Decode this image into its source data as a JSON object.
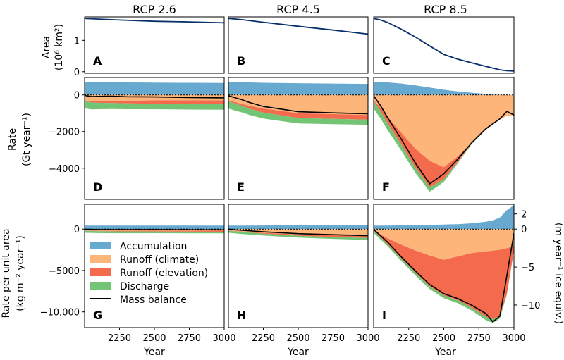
{
  "columns": [
    "RCP 2.6",
    "RCP 4.5",
    "RCP 8.5"
  ],
  "x_axis": {
    "label": "Year",
    "ticks": [
      "2250",
      "2500",
      "2750",
      "3000"
    ],
    "range": [
      2000,
      3000
    ]
  },
  "rows": {
    "area": {
      "ylabel_line1": "Area",
      "ylabel_line2": "(10⁶ km²)",
      "ticks": [
        "0",
        "1"
      ]
    },
    "rate": {
      "ylabel_line1": "Rate",
      "ylabel_line2": "(Gt year⁻¹)",
      "ticks": [
        "0",
        "−2000",
        "−4000"
      ]
    },
    "unit": {
      "ylabel_line1": "Rate per unit area",
      "ylabel_line2": "(kg m⁻² year⁻¹)",
      "ticks": [
        "0",
        "−5000",
        "−10,000"
      ],
      "right_label": "(m year⁻¹ ice equiv.)",
      "right_ticks": [
        "2",
        "0",
        "−5",
        "−10"
      ]
    }
  },
  "panel_labels": [
    "A",
    "B",
    "C",
    "D",
    "E",
    "F",
    "G",
    "H",
    "I"
  ],
  "legend": {
    "accumulation": "Accumulation",
    "runoff_climate": "Runoff (climate)",
    "runoff_elevation": "Runoff (elevation)",
    "discharge": "Discharge",
    "mass_balance": "Mass balance"
  },
  "colors": {
    "accumulation": "#67a9cf",
    "runoff_climate": "#fdb57a",
    "runoff_elevation": "#f46a4c",
    "discharge": "#74c476",
    "mass_balance": "#000000",
    "area_line": "#08306b"
  },
  "chart_data": [
    {
      "type": "line",
      "row": "area",
      "scenario": "RCP 2.6",
      "ylabel": "Area (10^6 km^2)",
      "ylim": [
        -0.05,
        1.75
      ],
      "x": [
        2000,
        2100,
        2250,
        2500,
        2750,
        3000
      ],
      "values": [
        1.7,
        1.68,
        1.65,
        1.61,
        1.59,
        1.56
      ]
    },
    {
      "type": "line",
      "row": "area",
      "scenario": "RCP 4.5",
      "ylabel": "Area (10^6 km^2)",
      "ylim": [
        -0.05,
        1.75
      ],
      "x": [
        2000,
        2100,
        2250,
        2500,
        2750,
        3000
      ],
      "values": [
        1.7,
        1.66,
        1.58,
        1.45,
        1.33,
        1.2
      ]
    },
    {
      "type": "line",
      "row": "area",
      "scenario": "RCP 8.5",
      "ylabel": "Area (10^6 km^2)",
      "ylim": [
        -0.05,
        1.75
      ],
      "x": [
        2000,
        2050,
        2100,
        2200,
        2300,
        2400,
        2500,
        2600,
        2700,
        2800,
        2900,
        2950,
        3000
      ],
      "values": [
        1.7,
        1.65,
        1.57,
        1.35,
        1.1,
        0.82,
        0.55,
        0.4,
        0.28,
        0.17,
        0.06,
        0.03,
        0.02
      ]
    },
    {
      "type": "area",
      "row": "rate",
      "scenario": "RCP 2.6",
      "ylabel": "Rate (Gt year^-1)",
      "ylim": [
        -5700,
        950
      ],
      "x": [
        2000,
        2050,
        2100,
        2200,
        2300,
        2500,
        2750,
        3000
      ],
      "series": [
        {
          "name": "Accumulation",
          "values": [
            700,
            700,
            700,
            690,
            680,
            670,
            660,
            650
          ]
        },
        {
          "name": "Runoff (climate)",
          "values": [
            -300,
            -350,
            -350,
            -330,
            -320,
            -300,
            -300,
            -300
          ]
        },
        {
          "name": "Runoff (elevation)",
          "values": [
            -30,
            -60,
            -80,
            -110,
            -140,
            -180,
            -200,
            -210
          ]
        },
        {
          "name": "Discharge",
          "values": [
            -400,
            -380,
            -350,
            -330,
            -320,
            -300,
            -300,
            -300
          ]
        },
        {
          "name": "Mass balance",
          "values": [
            -30,
            -90,
            -80,
            -70,
            -100,
            -110,
            -140,
            -160
          ]
        }
      ]
    },
    {
      "type": "area",
      "row": "rate",
      "scenario": "RCP 4.5",
      "ylabel": "Rate (Gt year^-1)",
      "ylim": [
        -5700,
        950
      ],
      "x": [
        2000,
        2050,
        2100,
        2150,
        2250,
        2500,
        2750,
        3000
      ],
      "series": [
        {
          "name": "Accumulation",
          "values": [
            700,
            700,
            690,
            680,
            660,
            640,
            620,
            600
          ]
        },
        {
          "name": "Runoff (climate)",
          "values": [
            -300,
            -400,
            -500,
            -600,
            -750,
            -1000,
            -1050,
            -1100
          ]
        },
        {
          "name": "Runoff (elevation)",
          "values": [
            -40,
            -80,
            -100,
            -150,
            -220,
            -260,
            -260,
            -250
          ]
        },
        {
          "name": "Discharge",
          "values": [
            -400,
            -380,
            -360,
            -340,
            -320,
            -300,
            -290,
            -280
          ]
        },
        {
          "name": "Mass balance",
          "values": [
            -40,
            -160,
            -270,
            -410,
            -630,
            -920,
            -980,
            -1030
          ]
        }
      ]
    },
    {
      "type": "area",
      "row": "rate",
      "scenario": "RCP 8.5",
      "ylabel": "Rate (Gt year^-1)",
      "ylim": [
        -5700,
        950
      ],
      "x": [
        2000,
        2050,
        2100,
        2200,
        2300,
        2400,
        2500,
        2600,
        2700,
        2800,
        2900,
        2950,
        3000
      ],
      "series": [
        {
          "name": "Accumulation",
          "values": [
            700,
            700,
            680,
            620,
            520,
            400,
            280,
            190,
            120,
            60,
            20,
            10,
            0
          ]
        },
        {
          "name": "Runoff (climate)",
          "values": [
            -300,
            -700,
            -1200,
            -2100,
            -2950,
            -3600,
            -3950,
            -3350,
            -2600,
            -1900,
            -1350,
            -1150,
            -1100
          ]
        },
        {
          "name": "Runoff (elevation)",
          "values": [
            -50,
            -200,
            -350,
            -650,
            -1050,
            -1450,
            -650,
            -300,
            -50,
            0,
            0,
            0,
            0
          ]
        },
        {
          "name": "Discharge",
          "values": [
            -400,
            -400,
            -380,
            -330,
            -280,
            -230,
            -150,
            -80,
            -30,
            0,
            0,
            0,
            0
          ]
        },
        {
          "name": "Mass balance",
          "values": [
            -50,
            -600,
            -1250,
            -2450,
            -3750,
            -4850,
            -4300,
            -3500,
            -2600,
            -1850,
            -1300,
            -900,
            -1100
          ]
        }
      ]
    },
    {
      "type": "area",
      "row": "unit",
      "scenario": "RCP 2.6",
      "ylabel": "Rate per unit area (kg m^-2 year^-1)",
      "ylim": [
        -11900,
        3000
      ],
      "x": [
        2000,
        2100,
        2250,
        2500,
        2750,
        3000
      ],
      "series": [
        {
          "name": "Accumulation",
          "values": [
            420,
            420,
            430,
            430,
            430,
            430
          ]
        },
        {
          "name": "Runoff (climate)",
          "values": [
            -180,
            -200,
            -200,
            -190,
            -190,
            -190
          ]
        },
        {
          "name": "Runoff (elevation)",
          "values": [
            -20,
            -50,
            -80,
            -100,
            -120,
            -130
          ]
        },
        {
          "name": "Discharge",
          "values": [
            -250,
            -230,
            -220,
            -200,
            -200,
            -200
          ]
        },
        {
          "name": "Mass balance",
          "values": [
            -30,
            -60,
            -70,
            -60,
            -80,
            -90
          ]
        }
      ]
    },
    {
      "type": "area",
      "row": "unit",
      "scenario": "RCP 4.5",
      "ylabel": "Rate per unit area (kg m^-2 year^-1)",
      "ylim": [
        -11900,
        3000
      ],
      "x": [
        2000,
        2100,
        2250,
        2500,
        2750,
        3000
      ],
      "series": [
        {
          "name": "Accumulation",
          "values": [
            420,
            430,
            440,
            460,
            480,
            500
          ]
        },
        {
          "name": "Runoff (climate)",
          "values": [
            -180,
            -300,
            -450,
            -650,
            -750,
            -850
          ]
        },
        {
          "name": "Runoff (elevation)",
          "values": [
            -20,
            -50,
            -100,
            -160,
            -200,
            -220
          ]
        },
        {
          "name": "Discharge",
          "values": [
            -250,
            -240,
            -230,
            -220,
            -230,
            -240
          ]
        },
        {
          "name": "Mass balance",
          "values": [
            -30,
            -150,
            -330,
            -550,
            -680,
            -800
          ]
        }
      ]
    },
    {
      "type": "area",
      "row": "unit",
      "scenario": "RCP 8.5",
      "ylabel": "Rate per unit area (kg m^-2 year^-1)",
      "ylim": [
        -11900,
        3000
      ],
      "x": [
        2000,
        2100,
        2200,
        2300,
        2400,
        2500,
        2600,
        2700,
        2800,
        2850,
        2900,
        2950,
        3000
      ],
      "series": [
        {
          "name": "Accumulation",
          "values": [
            420,
            430,
            450,
            480,
            520,
            560,
            600,
            700,
            900,
            1050,
            1400,
            2300,
            2900
          ]
        },
        {
          "name": "Runoff (climate)",
          "values": [
            -180,
            -1100,
            -1900,
            -2600,
            -3200,
            -3700,
            -3300,
            -2900,
            -2700,
            -2600,
            -2500,
            -2300,
            -2100
          ]
        },
        {
          "name": "Runoff (elevation)",
          "values": [
            -20,
            -700,
            -1700,
            -2700,
            -3700,
            -4300,
            -5300,
            -6600,
            -7900,
            -8300,
            -8000,
            -5500,
            -500
          ]
        },
        {
          "name": "Discharge",
          "values": [
            -250,
            -270,
            -300,
            -330,
            -350,
            -350,
            -350,
            -350,
            -400,
            -450,
            -300,
            -100,
            0
          ]
        },
        {
          "name": "Mass balance",
          "values": [
            -30,
            -1600,
            -3400,
            -5100,
            -6700,
            -7800,
            -8400,
            -9200,
            -10200,
            -11200,
            -10500,
            -5600,
            -500
          ]
        }
      ]
    }
  ]
}
